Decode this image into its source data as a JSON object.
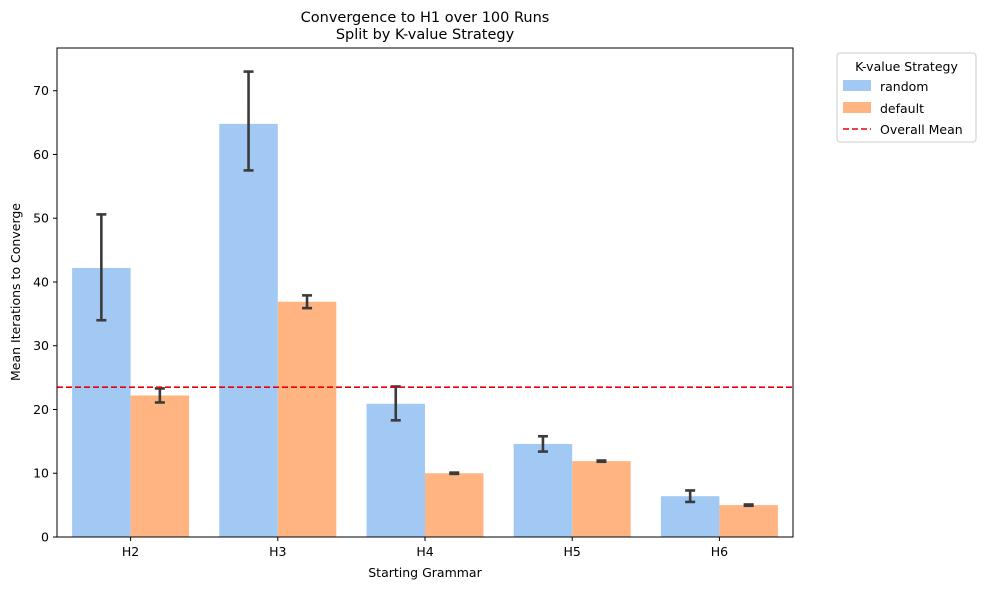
{
  "chart_data": {
    "type": "bar",
    "title": "Convergence to H1 over 100 Runs",
    "subtitle": "Split by K-value Strategy",
    "xlabel": "Starting Grammar",
    "ylabel": "Mean Iterations to Converge",
    "categories": [
      "H2",
      "H3",
      "H4",
      "H5",
      "H6"
    ],
    "ylim": [
      0,
      76.7
    ],
    "yticks": [
      0,
      10,
      20,
      30,
      40,
      50,
      60,
      70
    ],
    "grid": false,
    "series": [
      {
        "name": "random",
        "color": "#a1c9f4",
        "values": [
          42.2,
          64.8,
          20.9,
          14.6,
          6.4
        ],
        "err_low": [
          34.0,
          57.5,
          18.3,
          13.4,
          5.5
        ],
        "err_high": [
          50.6,
          73.0,
          23.6,
          15.8,
          7.3
        ]
      },
      {
        "name": "default",
        "color": "#ffb482",
        "values": [
          22.2,
          36.9,
          10.0,
          11.9,
          5.0
        ],
        "err_low": [
          21.1,
          35.9,
          9.9,
          11.8,
          4.9
        ],
        "err_high": [
          23.3,
          37.9,
          10.1,
          12.0,
          5.1
        ]
      }
    ],
    "reference_line": {
      "label": "Overall Mean",
      "value": 23.5,
      "color": "#e8000b",
      "style": "dashed"
    },
    "legend": {
      "title": "K-value Strategy",
      "placement": "outside-top-right",
      "entries": [
        "random",
        "default",
        "Overall Mean"
      ]
    },
    "errorbar_color": "#3b3b3b"
  }
}
